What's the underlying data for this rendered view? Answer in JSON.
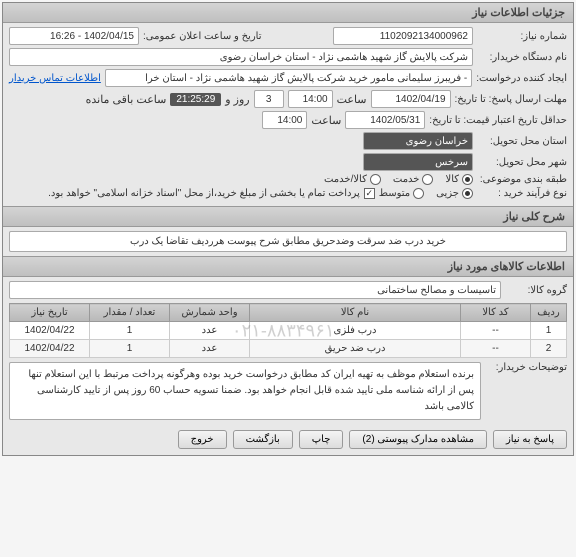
{
  "panel_title": "جزئیات اطلاعات نیاز",
  "fields": {
    "need_no_label": "شماره نیاز:",
    "need_no": "1102092134000962",
    "pub_datetime_label": "تاریخ و ساعت اعلان عمومی:",
    "pub_datetime": "1402/04/15 - 16:26",
    "buyer_label": "نام دستگاه خریدار:",
    "buyer": "شرکت پالایش گاز شهید هاشمی نژاد - استان خراسان رضوی",
    "requester_label": "ایجاد کننده درخواست:",
    "requester": "- فریبرز سلیمانی مامور خرید شرکت پالایش گاز شهید هاشمی نژاد - استان خرا",
    "contact_link": "اطلاعات تماس خریدار",
    "deadline_label": "مهلت ارسال پاسخ: تا تاریخ:",
    "deadline_date": "1402/04/19",
    "time_label": "ساعت",
    "deadline_time": "14:00",
    "days_remain": "3",
    "days_label": "روز و",
    "countdown": "21:25:29",
    "remain_label": "ساعت باقی مانده",
    "validity_label": "حداقل تاریخ اعتبار قیمت: تا تاریخ:",
    "validity_date": "1402/05/31",
    "validity_time": "14:00",
    "province_label": "استان محل تحویل:",
    "province": "خراسان رضوی",
    "city_label": "شهر محل تحویل:",
    "city": "سرخس",
    "subject_cat_label": "طبقه بندی موضوعی:",
    "buy_type_label": "نوع فرآیند خرید :",
    "payment_note": "پرداخت تمام یا بخشی از مبلغ خرید،از محل \"اسناد خزانه اسلامی\" خواهد بود."
  },
  "subject_options": [
    {
      "label": "کالا",
      "checked": true
    },
    {
      "label": "خدمت",
      "checked": false
    },
    {
      "label": "کالا/خدمت",
      "checked": false
    }
  ],
  "buy_type_options": [
    {
      "label": "جزیی",
      "checked": true
    },
    {
      "label": "متوسط",
      "checked": false
    }
  ],
  "sections": {
    "desc_title": "شرح کلی نیاز",
    "desc_text": "خرید درب ضد سرقت وضدحریق مطابق شرح پیوست  هرردیف تقاضا یک درب",
    "items_title": "اطلاعات کالاهای مورد نیاز",
    "group_label": "گروه کالا:",
    "group_value": "تاسیسات و مصالح ساختمانی",
    "notes_label": "توضیحات خریدار:",
    "notes_text": "برنده استعلام موظف به تهیه ایران کد مطابق درخواست خرید بوده وهرگونه پرداخت مرتبط با این استعلام تنها پس از ارائه شناسه ملی تایید شده قابل انجام خواهد بود. ضمنا تسویه حساب 60 روز پس از تایید کارشناسی کالامی باشد"
  },
  "table": {
    "columns": [
      "ردیف",
      "کد کالا",
      "نام کالا",
      "واحد شمارش",
      "تعداد / مقدار",
      "تاریخ نیاز"
    ],
    "rows": [
      [
        "1",
        "--",
        "درب فلزی",
        "عدد",
        "1",
        "1402/04/22"
      ],
      [
        "2",
        "--",
        "درب ضد حریق",
        "عدد",
        "1",
        "1402/04/22"
      ]
    ],
    "col_widths": [
      "36px",
      "70px",
      "auto",
      "80px",
      "80px",
      "80px"
    ]
  },
  "watermark": "۰۲۱-۸۸۳۴۹۶۱۰",
  "buttons": {
    "reply": "پاسخ به نیاز",
    "attachments": "مشاهده مدارک پیوستی (2)",
    "print": "چاپ",
    "back": "بازگشت",
    "exit": "خروج"
  }
}
